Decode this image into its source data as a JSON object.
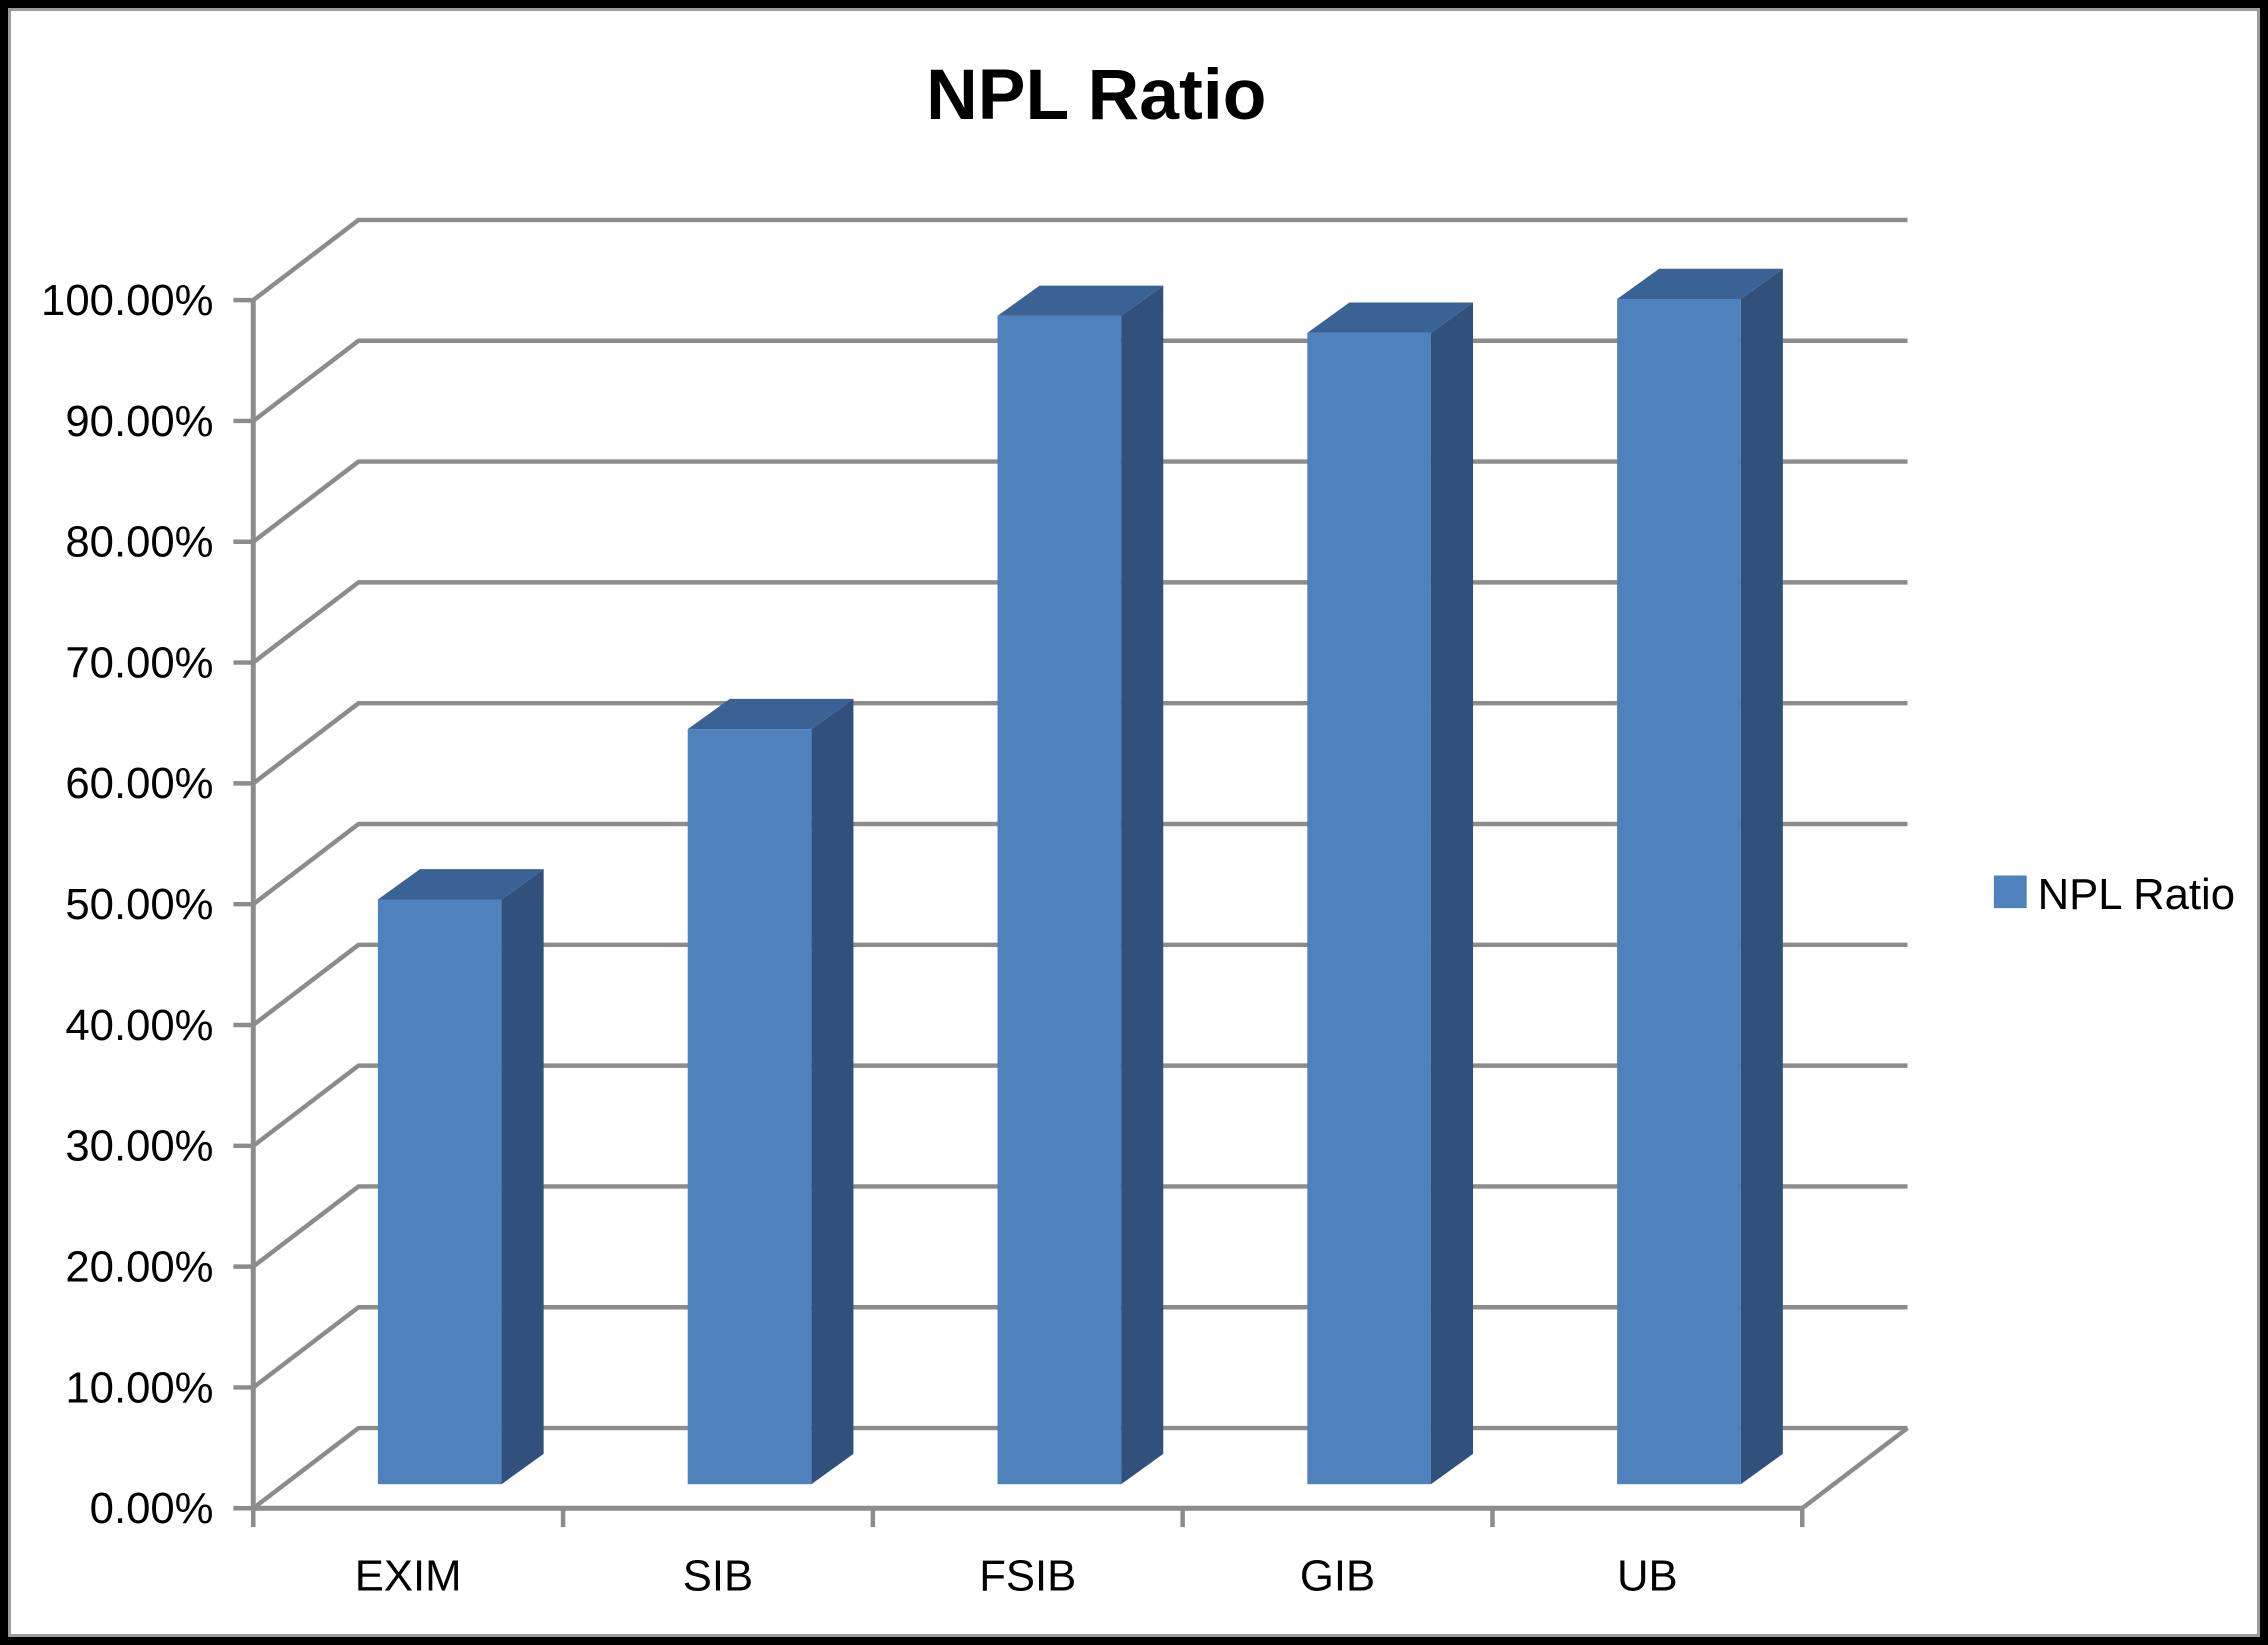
{
  "frame": {
    "border_color": "#000000",
    "inner_line_color": "#9C9C9C",
    "background": "#FFFFFF"
  },
  "title": "NPL Ratio",
  "legend": {
    "label": "NPL Ratio"
  },
  "chart_data": {
    "type": "bar",
    "subtype": "3d-clustered-column",
    "title": "NPL Ratio",
    "categories": [
      "EXIM",
      "SIB",
      "FSIB",
      "GIB",
      "UB"
    ],
    "series": [
      {
        "name": "NPL Ratio",
        "values": [
          48.4,
          62.5,
          96.7,
          95.3,
          98.1
        ]
      }
    ],
    "value_unit": "%",
    "y_axis": {
      "min": 0,
      "max": 100,
      "step": 10,
      "tick_labels": [
        "0.00%",
        "10.00%",
        "20.00%",
        "30.00%",
        "40.00%",
        "50.00%",
        "60.00%",
        "70.00%",
        "80.00%",
        "90.00%",
        "100.00%"
      ]
    },
    "x_axis": {
      "tick_labels": [
        "EXIM",
        "SIB",
        "FSIB",
        "GIB",
        "UB"
      ]
    },
    "legend_position": "middle-right",
    "gridlines": true,
    "colors": {
      "bar_front": "#4F81BD",
      "bar_side": "#31517C",
      "bar_top": "#3A6295",
      "gridline": "#8C8C8C",
      "axis": "#8C8C8C",
      "text": "#000000"
    }
  }
}
